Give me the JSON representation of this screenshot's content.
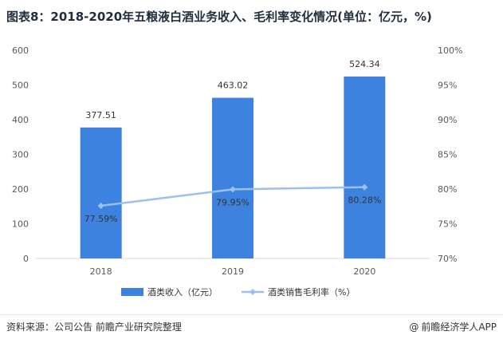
{
  "title": "图表8：2018-2020年五粮液白酒业务收入、毛利率变化情况(单位：亿元，%)",
  "chart_data": {
    "type": "bar",
    "categories": [
      "2018",
      "2019",
      "2020"
    ],
    "series": [
      {
        "name": "酒类收入（亿元）",
        "type": "bar",
        "axis": "left",
        "values": [
          377.51,
          463.02,
          524.34
        ],
        "labels": [
          "377.51",
          "463.02",
          "524.34"
        ],
        "color": "#3e82e0"
      },
      {
        "name": "酒类销售毛利率（%）",
        "type": "line",
        "axis": "right",
        "values": [
          77.59,
          79.95,
          80.28
        ],
        "labels": [
          "77.59%",
          "79.95%",
          "80.28%"
        ],
        "color": "#9dbff0"
      }
    ],
    "y_left": {
      "ticks": [
        "0",
        "100",
        "200",
        "300",
        "400",
        "500",
        "600"
      ],
      "range": [
        0,
        600
      ]
    },
    "y_right": {
      "ticks": [
        "70%",
        "75%",
        "80%",
        "85%",
        "90%",
        "95%",
        "100%"
      ],
      "range": [
        70,
        100
      ]
    },
    "grid": false,
    "legend_position": "bottom"
  },
  "footer": {
    "source": "资料来源：公司公告 前瞻产业研究院整理",
    "brand": "前瞻经济学人APP",
    "brand_icon": "at-icon"
  }
}
